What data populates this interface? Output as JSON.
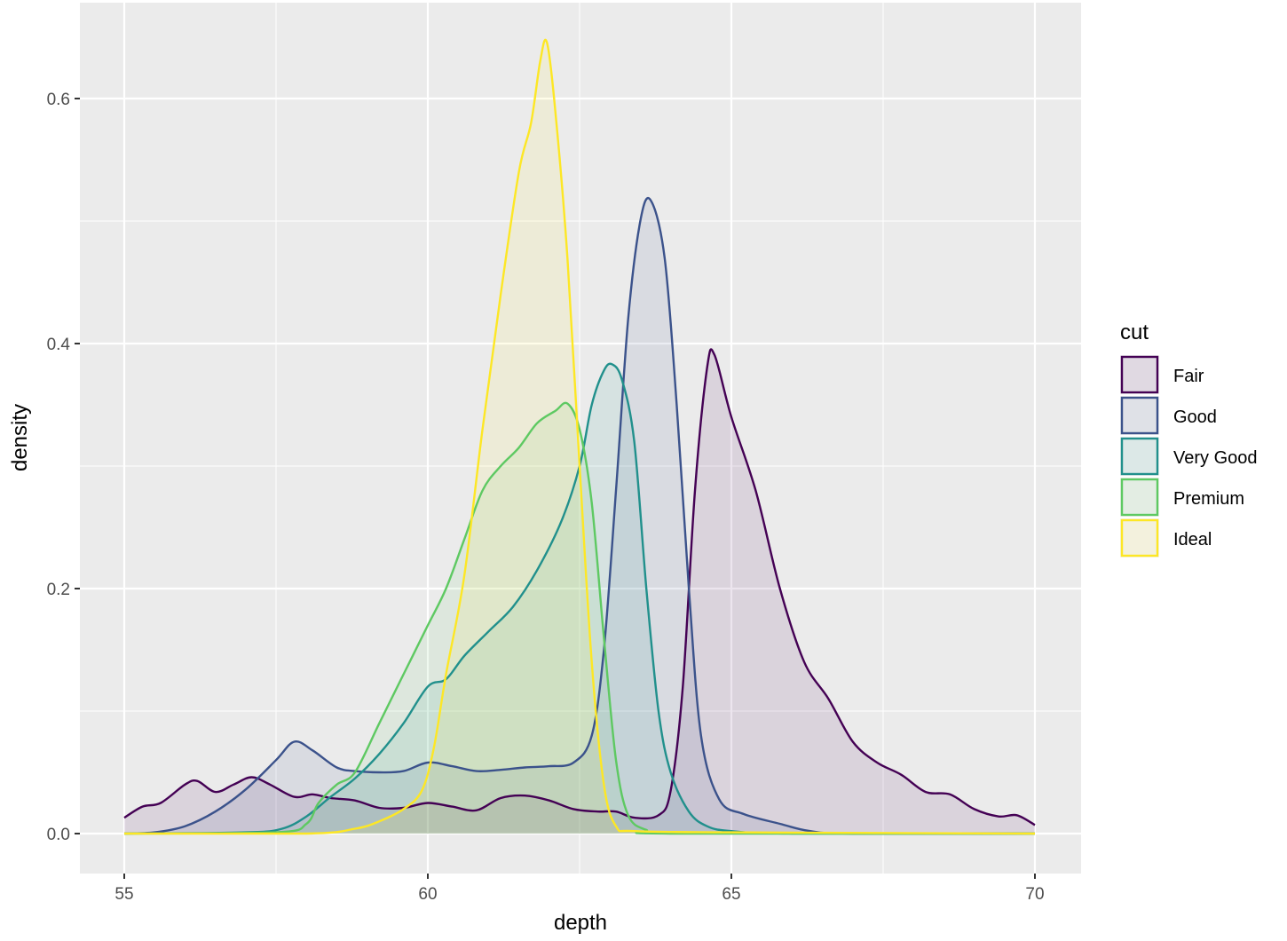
{
  "chart_data": {
    "type": "area",
    "subtype": "density",
    "title": "",
    "xlabel": "depth",
    "ylabel": "density",
    "xlim": [
      55,
      70
    ],
    "ylim": [
      0,
      0.65
    ],
    "x_ticks": [
      55,
      60,
      65,
      70
    ],
    "x_tick_labels": [
      "55",
      "60",
      "65",
      "70"
    ],
    "y_ticks": [
      0.0,
      0.2,
      0.4,
      0.6
    ],
    "y_tick_labels": [
      "0.0",
      "0.2",
      "0.4",
      "0.6"
    ],
    "grid": true,
    "legend": {
      "title": "cut",
      "position": "right"
    },
    "series": [
      {
        "name": "Fair",
        "color": "#440154",
        "fill": "rgba(68,1,84,0.1)",
        "peak": {
          "x": 64.7,
          "y": 0.391
        },
        "points": [
          [
            55.0,
            0.013
          ],
          [
            55.3,
            0.022
          ],
          [
            55.6,
            0.025
          ],
          [
            56.0,
            0.04
          ],
          [
            56.2,
            0.043
          ],
          [
            56.5,
            0.034
          ],
          [
            56.8,
            0.04
          ],
          [
            57.1,
            0.046
          ],
          [
            57.4,
            0.04
          ],
          [
            57.8,
            0.03
          ],
          [
            58.1,
            0.032
          ],
          [
            58.4,
            0.029
          ],
          [
            58.8,
            0.027
          ],
          [
            59.2,
            0.021
          ],
          [
            59.6,
            0.021
          ],
          [
            60.0,
            0.025
          ],
          [
            60.4,
            0.022
          ],
          [
            60.8,
            0.019
          ],
          [
            61.2,
            0.029
          ],
          [
            61.6,
            0.031
          ],
          [
            62.0,
            0.027
          ],
          [
            62.4,
            0.02
          ],
          [
            62.8,
            0.018
          ],
          [
            63.1,
            0.018
          ],
          [
            63.4,
            0.013
          ],
          [
            63.8,
            0.015
          ],
          [
            64.0,
            0.035
          ],
          [
            64.2,
            0.12
          ],
          [
            64.4,
            0.28
          ],
          [
            64.6,
            0.38
          ],
          [
            64.72,
            0.391
          ],
          [
            65.0,
            0.34
          ],
          [
            65.4,
            0.28
          ],
          [
            65.8,
            0.2
          ],
          [
            66.2,
            0.14
          ],
          [
            66.6,
            0.11
          ],
          [
            67.0,
            0.075
          ],
          [
            67.4,
            0.058
          ],
          [
            67.8,
            0.048
          ],
          [
            68.2,
            0.034
          ],
          [
            68.6,
            0.032
          ],
          [
            69.0,
            0.02
          ],
          [
            69.4,
            0.014
          ],
          [
            69.7,
            0.015
          ],
          [
            70.0,
            0.007
          ]
        ]
      },
      {
        "name": "Good",
        "color": "#3b528b",
        "fill": "rgba(59,82,139,0.1)",
        "peak": {
          "x": 63.67,
          "y": 0.517
        },
        "points": [
          [
            55.0,
            0.0
          ],
          [
            55.5,
            0.001
          ],
          [
            56.0,
            0.006
          ],
          [
            56.5,
            0.018
          ],
          [
            57.0,
            0.036
          ],
          [
            57.5,
            0.06
          ],
          [
            57.8,
            0.075
          ],
          [
            58.1,
            0.068
          ],
          [
            58.5,
            0.054
          ],
          [
            58.8,
            0.051
          ],
          [
            59.2,
            0.05
          ],
          [
            59.6,
            0.051
          ],
          [
            60.0,
            0.058
          ],
          [
            60.4,
            0.055
          ],
          [
            60.8,
            0.051
          ],
          [
            61.2,
            0.052
          ],
          [
            61.6,
            0.054
          ],
          [
            62.0,
            0.055
          ],
          [
            62.4,
            0.058
          ],
          [
            62.7,
            0.08
          ],
          [
            62.9,
            0.15
          ],
          [
            63.1,
            0.28
          ],
          [
            63.3,
            0.42
          ],
          [
            63.5,
            0.5
          ],
          [
            63.67,
            0.517
          ],
          [
            63.9,
            0.47
          ],
          [
            64.1,
            0.35
          ],
          [
            64.3,
            0.2
          ],
          [
            64.5,
            0.08
          ],
          [
            64.8,
            0.028
          ],
          [
            65.2,
            0.016
          ],
          [
            65.8,
            0.008
          ],
          [
            66.3,
            0.002
          ],
          [
            67.0,
            0.0
          ],
          [
            70.0,
            0.0
          ]
        ]
      },
      {
        "name": "Very Good",
        "color": "#21908c",
        "fill": "rgba(33,144,140,0.1)",
        "peak": {
          "x": 63.04,
          "y": 0.383
        },
        "points": [
          [
            55.0,
            0.0
          ],
          [
            57.0,
            0.001
          ],
          [
            57.6,
            0.004
          ],
          [
            58.0,
            0.014
          ],
          [
            58.4,
            0.03
          ],
          [
            58.8,
            0.045
          ],
          [
            59.2,
            0.065
          ],
          [
            59.6,
            0.09
          ],
          [
            60.0,
            0.12
          ],
          [
            60.3,
            0.126
          ],
          [
            60.6,
            0.145
          ],
          [
            61.0,
            0.165
          ],
          [
            61.4,
            0.185
          ],
          [
            61.8,
            0.215
          ],
          [
            62.2,
            0.255
          ],
          [
            62.5,
            0.3
          ],
          [
            62.7,
            0.35
          ],
          [
            62.9,
            0.378
          ],
          [
            63.04,
            0.383
          ],
          [
            63.2,
            0.37
          ],
          [
            63.4,
            0.32
          ],
          [
            63.6,
            0.2
          ],
          [
            63.8,
            0.1
          ],
          [
            64.0,
            0.05
          ],
          [
            64.3,
            0.018
          ],
          [
            64.6,
            0.006
          ],
          [
            65.0,
            0.002
          ],
          [
            66.0,
            0.0
          ],
          [
            70.0,
            0.0
          ]
        ]
      },
      {
        "name": "Premium",
        "color": "#5ec962",
        "fill": "rgba(94,201,98,0.1)",
        "peak": {
          "x": 62.3,
          "y": 0.351
        },
        "points": [
          [
            55.0,
            0.0
          ],
          [
            57.5,
            0.001
          ],
          [
            58.0,
            0.008
          ],
          [
            58.2,
            0.025
          ],
          [
            58.5,
            0.04
          ],
          [
            58.8,
            0.05
          ],
          [
            59.2,
            0.09
          ],
          [
            59.6,
            0.13
          ],
          [
            60.0,
            0.17
          ],
          [
            60.3,
            0.2
          ],
          [
            60.6,
            0.24
          ],
          [
            60.9,
            0.28
          ],
          [
            61.2,
            0.3
          ],
          [
            61.5,
            0.315
          ],
          [
            61.8,
            0.335
          ],
          [
            62.1,
            0.345
          ],
          [
            62.3,
            0.351
          ],
          [
            62.5,
            0.33
          ],
          [
            62.7,
            0.27
          ],
          [
            62.9,
            0.16
          ],
          [
            63.1,
            0.06
          ],
          [
            63.3,
            0.015
          ],
          [
            63.6,
            0.003
          ],
          [
            64.0,
            0.0
          ],
          [
            70.0,
            0.0
          ]
        ]
      },
      {
        "name": "Ideal",
        "color": "#fde725",
        "fill": "rgba(253,231,37,0.1)",
        "peak": {
          "x": 61.96,
          "y": 0.646
        },
        "points": [
          [
            55.0,
            0.0
          ],
          [
            58.0,
            0.0
          ],
          [
            58.8,
            0.004
          ],
          [
            59.2,
            0.01
          ],
          [
            59.6,
            0.02
          ],
          [
            59.9,
            0.035
          ],
          [
            60.1,
            0.07
          ],
          [
            60.3,
            0.13
          ],
          [
            60.6,
            0.21
          ],
          [
            60.9,
            0.33
          ],
          [
            61.2,
            0.44
          ],
          [
            61.5,
            0.54
          ],
          [
            61.7,
            0.58
          ],
          [
            61.85,
            0.63
          ],
          [
            61.96,
            0.646
          ],
          [
            62.1,
            0.59
          ],
          [
            62.3,
            0.47
          ],
          [
            62.5,
            0.3
          ],
          [
            62.7,
            0.14
          ],
          [
            62.9,
            0.04
          ],
          [
            63.1,
            0.006
          ],
          [
            63.4,
            0.002
          ],
          [
            65.0,
            0.001
          ],
          [
            70.0,
            0.0
          ]
        ]
      }
    ]
  },
  "plot": {
    "panel_bg": "#ebebeb",
    "grid_color": "#ffffff"
  }
}
